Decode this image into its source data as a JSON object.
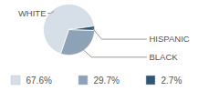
{
  "chart_data": {
    "type": "pie",
    "categories": [
      "WHITE",
      "BLACK",
      "HISPANIC"
    ],
    "values": [
      67.6,
      29.7,
      2.7
    ],
    "value_labels": [
      "67.6%",
      "29.7%",
      "2.7%"
    ],
    "colors": [
      "#d6dfe8",
      "#8ea2b7",
      "#2f5577"
    ],
    "legend": "bottom"
  }
}
